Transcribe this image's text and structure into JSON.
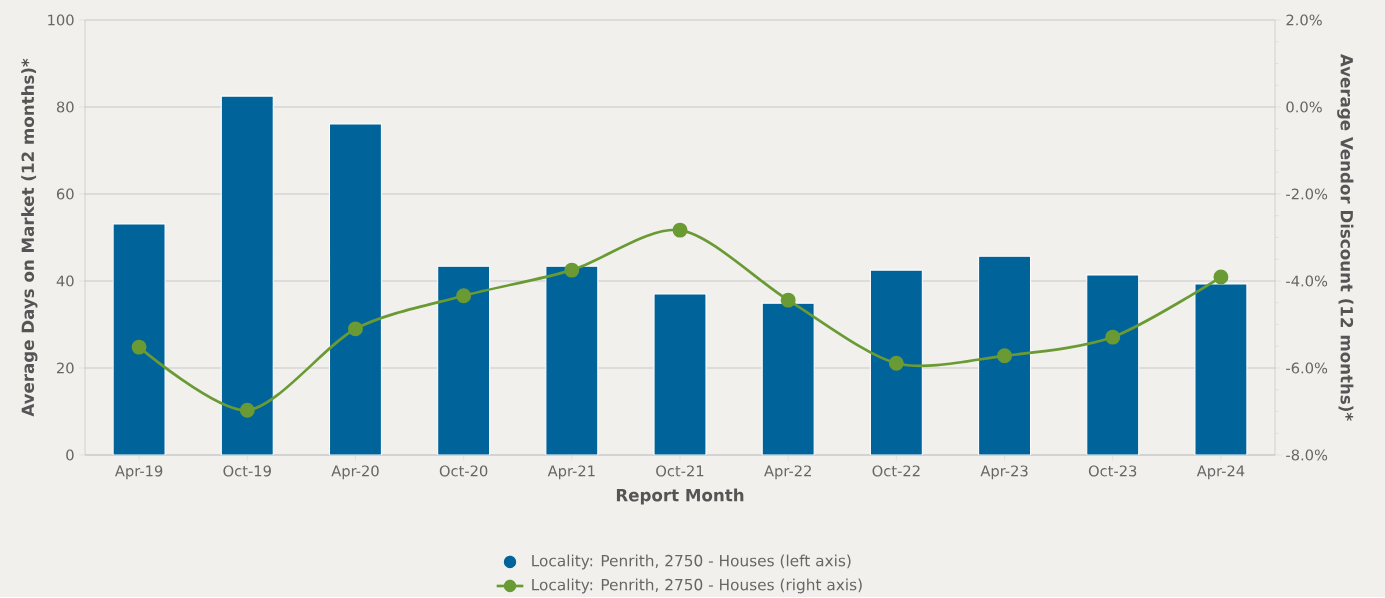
{
  "chart_data": {
    "type": "bar",
    "xlabel": "Report Month",
    "ylabel": "Average Days on Market (12 months)*",
    "y2label": "Average Vendor Discount (12 months)*",
    "categories": [
      "Apr-19",
      "Oct-19",
      "Apr-20",
      "Oct-20",
      "Apr-21",
      "Oct-21",
      "Apr-22",
      "Oct-22",
      "Apr-23",
      "Oct-23",
      "Apr-24"
    ],
    "series": [
      {
        "name": "Locality: Penrith, 2750 - Houses (left axis)",
        "color": "#00649a",
        "values": [
          53.1,
          82.5,
          76.1,
          43.4,
          43.4,
          37.0,
          34.9,
          42.5,
          45.7,
          41.4,
          39.3
        ]
      },
      {
        "name": "Locality: Penrith, 2750 - Houses (right axis)",
        "type": "line",
        "axis": "y2",
        "color": "#6a9a34",
        "values": [
          -5.52,
          -6.97,
          -5.1,
          -4.34,
          -3.75,
          -2.83,
          -4.44,
          -5.89,
          -5.72,
          -5.29,
          -3.91
        ]
      }
    ],
    "ylim": [
      0,
      100
    ],
    "yticks": [
      0,
      20,
      40,
      60,
      80,
      100
    ],
    "y2lim": [
      -8,
      2
    ],
    "y2ticks": [
      {
        "value": -8,
        "label": "-8.0%"
      },
      {
        "value": -6,
        "label": "-6.0%"
      },
      {
        "value": -4,
        "label": "-4.0%"
      },
      {
        "value": -2,
        "label": "-2.0%"
      },
      {
        "value": 0,
        "label": "0.0%"
      },
      {
        "value": 2,
        "label": "2.0%"
      }
    ],
    "grid": "y",
    "legend": "bottom",
    "marker": "circle"
  }
}
